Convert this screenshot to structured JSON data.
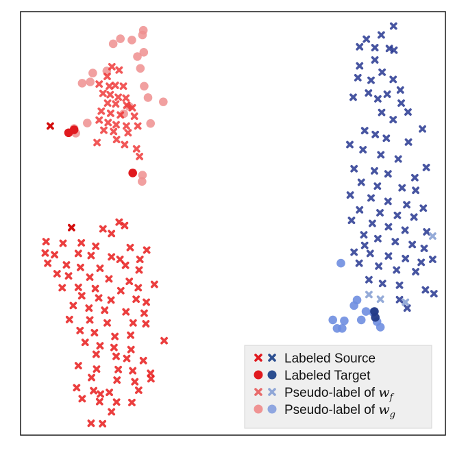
{
  "chart_data": {
    "type": "scatter",
    "title": "",
    "xlabel": "",
    "ylabel": "",
    "grid": false,
    "axes_ticks": false,
    "xlim": [
      0,
      100
    ],
    "ylim": [
      0,
      100
    ],
    "legend": {
      "placement": "bottom-right",
      "entries": [
        {
          "label": "Labeled Source",
          "math": "",
          "sub": "",
          "marker": "x",
          "colors": [
            "#e0191e",
            "#2c4e90"
          ],
          "opacity": 1.0
        },
        {
          "label": "Labeled Target",
          "math": "",
          "sub": "",
          "marker": "circle",
          "colors": [
            "#e0191e",
            "#2c4e90"
          ],
          "opacity": 1.0
        },
        {
          "label": "Pseudo-label of ",
          "math": "w",
          "sub": "f",
          "marker": "x",
          "colors": [
            "#e86a6a",
            "#8fa6d6"
          ],
          "opacity": 1.0
        },
        {
          "label": "Pseudo-label of ",
          "math": "w",
          "sub": "g",
          "marker": "circle",
          "colors": [
            "#ef9393",
            "#8fa6e0"
          ],
          "opacity": 1.0
        }
      ]
    },
    "series": [
      {
        "group": "red-labeled-source",
        "marker": "x",
        "color": "#d10000",
        "opacity": 0.95,
        "points": [
          [
            7,
            73
          ],
          [
            12,
            49
          ]
        ]
      },
      {
        "group": "red-labeled-target",
        "marker": "circle",
        "color": "#e0191e",
        "opacity": 1.0,
        "points": [
          [
            11.3,
            71.4
          ],
          [
            12.6,
            72.1
          ],
          [
            26.4,
            61.9
          ]
        ]
      },
      {
        "group": "red-pseudo-wf",
        "marker": "x",
        "color": "#ee2e2e",
        "opacity": 0.8,
        "points": [
          [
            21.5,
            87.0
          ],
          [
            23.2,
            86.2
          ],
          [
            20.4,
            84.7
          ],
          [
            18.5,
            82.9
          ],
          [
            20.9,
            82.4
          ],
          [
            22.3,
            82.6
          ],
          [
            24.2,
            82.4
          ],
          [
            19.4,
            80.7
          ],
          [
            21.1,
            80.4
          ],
          [
            23.0,
            79.8
          ],
          [
            24.8,
            79.6
          ],
          [
            20.5,
            78.4
          ],
          [
            22.4,
            78.2
          ],
          [
            25.0,
            77.9
          ],
          [
            26.3,
            77.3
          ],
          [
            19.0,
            76.5
          ],
          [
            21.2,
            76.0
          ],
          [
            23.5,
            75.6
          ],
          [
            26.8,
            75.3
          ],
          [
            18.5,
            74.4
          ],
          [
            20.6,
            73.8
          ],
          [
            22.5,
            73.3
          ],
          [
            24.9,
            73.0
          ],
          [
            27.6,
            73.0
          ],
          [
            19.6,
            72.0
          ],
          [
            21.9,
            71.7
          ],
          [
            25.3,
            71.4
          ],
          [
            22.6,
            69.8
          ],
          [
            18.0,
            69.1
          ],
          [
            24.5,
            68.6
          ],
          [
            27.3,
            67.6
          ],
          [
            28.0,
            65.8
          ]
        ]
      },
      {
        "group": "red-pseudo-wg-circles",
        "marker": "circle",
        "color": "#ef8f8f",
        "opacity": 0.85,
        "points": [
          [
            28.9,
            95.6
          ],
          [
            28.7,
            94.5
          ],
          [
            23.5,
            93.6
          ],
          [
            26.2,
            93.3
          ],
          [
            21.8,
            92.4
          ],
          [
            29.0,
            90.4
          ],
          [
            27.5,
            89.4
          ],
          [
            28.2,
            86.6
          ],
          [
            20.3,
            86.0
          ],
          [
            17.0,
            85.5
          ],
          [
            16.4,
            83.4
          ],
          [
            14.5,
            83.1
          ],
          [
            29.1,
            82.4
          ],
          [
            30.0,
            79.7
          ],
          [
            33.6,
            78.7
          ],
          [
            25.6,
            77.6
          ],
          [
            24.3,
            75.9
          ],
          [
            30.6,
            73.6
          ],
          [
            15.7,
            73.7
          ],
          [
            13.0,
            71.3
          ],
          [
            12.6,
            72.4
          ],
          [
            28.7,
            61.4
          ],
          [
            28.6,
            59.9
          ]
        ]
      },
      {
        "group": "red-source-cluster",
        "marker": "x",
        "color": "#e81c1c",
        "opacity": 0.85,
        "points": [
          [
            23.2,
            50.3
          ],
          [
            24.5,
            49.5
          ],
          [
            19.4,
            48.7
          ],
          [
            21.4,
            47.6
          ],
          [
            6.0,
            45.7
          ],
          [
            10.0,
            45.3
          ],
          [
            14.3,
            45.4
          ],
          [
            17.7,
            44.6
          ],
          [
            25.8,
            44.3
          ],
          [
            29.7,
            43.7
          ],
          [
            5.8,
            43.0
          ],
          [
            8.0,
            42.6
          ],
          [
            13.6,
            42.9
          ],
          [
            16.6,
            42.4
          ],
          [
            21.4,
            42.1
          ],
          [
            23.4,
            41.5
          ],
          [
            28.1,
            41.5
          ],
          [
            6.4,
            40.6
          ],
          [
            10.8,
            40.2
          ],
          [
            14.1,
            39.6
          ],
          [
            18.7,
            39.4
          ],
          [
            24.7,
            40.1
          ],
          [
            27.9,
            39.0
          ],
          [
            8.6,
            38.1
          ],
          [
            11.3,
            37.6
          ],
          [
            16.3,
            37.3
          ],
          [
            20.8,
            36.9
          ],
          [
            25.6,
            36.3
          ],
          [
            31.5,
            35.6
          ],
          [
            9.8,
            34.8
          ],
          [
            13.6,
            34.9
          ],
          [
            17.6,
            34.6
          ],
          [
            23.6,
            34.1
          ],
          [
            27.7,
            34.8
          ],
          [
            14.4,
            32.9
          ],
          [
            18.4,
            32.4
          ],
          [
            21.3,
            31.9
          ],
          [
            27.2,
            32.1
          ],
          [
            29.6,
            31.4
          ],
          [
            12.4,
            30.6
          ],
          [
            16.1,
            30.0
          ],
          [
            19.8,
            29.5
          ],
          [
            24.8,
            29.1
          ],
          [
            29.1,
            28.8
          ],
          [
            11.5,
            27.3
          ],
          [
            16.3,
            27.2
          ],
          [
            20.4,
            26.5
          ],
          [
            26.5,
            26.5
          ],
          [
            29.5,
            26.3
          ],
          [
            14.0,
            24.7
          ],
          [
            17.4,
            24.2
          ],
          [
            22.2,
            23.3
          ],
          [
            25.9,
            23.6
          ],
          [
            33.8,
            22.3
          ],
          [
            15.2,
            21.9
          ],
          [
            18.7,
            21.1
          ],
          [
            22.0,
            20.7
          ],
          [
            26.0,
            20.2
          ],
          [
            17.8,
            19.1
          ],
          [
            22.5,
            18.6
          ],
          [
            25.0,
            18.1
          ],
          [
            28.9,
            17.6
          ],
          [
            13.6,
            16.4
          ],
          [
            17.9,
            15.6
          ],
          [
            23.0,
            15.5
          ],
          [
            26.4,
            15.2
          ],
          [
            30.6,
            14.6
          ],
          [
            16.7,
            13.6
          ],
          [
            22.7,
            13.0
          ],
          [
            26.9,
            12.6
          ],
          [
            30.7,
            13.3
          ],
          [
            13.2,
            11.2
          ],
          [
            17.2,
            10.5
          ],
          [
            20.9,
            10.1
          ],
          [
            27.8,
            10.6
          ],
          [
            18.8,
            9.7
          ],
          [
            14.5,
            8.6
          ],
          [
            18.6,
            7.9
          ],
          [
            22.6,
            7.8
          ],
          [
            26.2,
            7.7
          ],
          [
            21.4,
            5.5
          ],
          [
            16.6,
            2.8
          ],
          [
            19.3,
            2.7
          ]
        ]
      },
      {
        "group": "blue-pseudo-wg",
        "marker": "circle",
        "color": "#6f8ee0",
        "opacity": 0.9,
        "points": [
          [
            75.4,
            40.6
          ],
          [
            79.2,
            31.9
          ],
          [
            78.5,
            30.6
          ],
          [
            81.3,
            29.2
          ],
          [
            83.0,
            29.0
          ],
          [
            73.5,
            27.2
          ],
          [
            76.2,
            27.0
          ],
          [
            80.2,
            27.2
          ],
          [
            83.9,
            26.8
          ],
          [
            74.5,
            25.2
          ],
          [
            75.7,
            25.2
          ],
          [
            84.7,
            25.5
          ]
        ]
      },
      {
        "group": "blue-labeled-target",
        "marker": "circle",
        "color": "#233a86",
        "opacity": 0.95,
        "points": [
          [
            83.3,
            29.2
          ],
          [
            83.5,
            27.8
          ]
        ]
      },
      {
        "group": "blue-pseudo-wf",
        "marker": "x",
        "color": "#8fa6d6",
        "opacity": 0.95,
        "points": [
          [
            82.0,
            33.2
          ],
          [
            84.7,
            32.1
          ],
          [
            90.6,
            31.4
          ],
          [
            97.0,
            47.0
          ]
        ]
      },
      {
        "group": "blue-source-cluster",
        "marker": "x",
        "color": "#1f2f8c",
        "opacity": 0.82,
        "points": [
          [
            87.8,
            96.6
          ],
          [
            84.9,
            94.5
          ],
          [
            81.4,
            93.5
          ],
          [
            79.8,
            91.7
          ],
          [
            83.4,
            91.5
          ],
          [
            86.8,
            91.3
          ],
          [
            87.9,
            90.9
          ],
          [
            83.4,
            88.6
          ],
          [
            79.8,
            87.2
          ],
          [
            85.1,
            85.7
          ],
          [
            79.4,
            84.4
          ],
          [
            82.5,
            83.8
          ],
          [
            87.7,
            84.0
          ],
          [
            89.4,
            81.5
          ],
          [
            81.9,
            80.8
          ],
          [
            86.3,
            80.5
          ],
          [
            78.3,
            79.8
          ],
          [
            84.1,
            79.4
          ],
          [
            89.6,
            78.4
          ],
          [
            91.2,
            76.3
          ],
          [
            85.0,
            76.2
          ],
          [
            87.7,
            74.5
          ],
          [
            94.6,
            72.3
          ],
          [
            81.0,
            71.9
          ],
          [
            83.5,
            71.0
          ],
          [
            86.1,
            70.1
          ],
          [
            91.3,
            69.2
          ],
          [
            77.5,
            68.6
          ],
          [
            80.6,
            67.4
          ],
          [
            84.8,
            66.2
          ],
          [
            88.9,
            65.2
          ],
          [
            95.5,
            63.2
          ],
          [
            78.5,
            62.9
          ],
          [
            83.3,
            62.4
          ],
          [
            86.5,
            61.7
          ],
          [
            92.8,
            60.8
          ],
          [
            80.2,
            59.7
          ],
          [
            84.0,
            58.8
          ],
          [
            89.8,
            58.4
          ],
          [
            93.0,
            57.8
          ],
          [
            77.6,
            56.7
          ],
          [
            82.5,
            56.0
          ],
          [
            86.5,
            55.2
          ],
          [
            90.9,
            54.4
          ],
          [
            94.8,
            53.6
          ],
          [
            79.8,
            53.2
          ],
          [
            84.6,
            52.5
          ],
          [
            88.7,
            51.9
          ],
          [
            92.6,
            51.5
          ],
          [
            77.9,
            50.7
          ],
          [
            82.8,
            50.0
          ],
          [
            86.6,
            49.2
          ],
          [
            90.5,
            48.4
          ],
          [
            95.6,
            48.0
          ],
          [
            80.8,
            47.3
          ],
          [
            84.1,
            46.4
          ],
          [
            88.2,
            45.7
          ],
          [
            92.2,
            45.0
          ],
          [
            95.0,
            44.1
          ],
          [
            78.5,
            43.2
          ],
          [
            82.3,
            42.9
          ],
          [
            86.6,
            42.3
          ],
          [
            90.6,
            41.7
          ],
          [
            94.3,
            40.8
          ],
          [
            97.0,
            41.5
          ],
          [
            79.7,
            40.6
          ],
          [
            84.3,
            39.9
          ],
          [
            88.5,
            39.0
          ],
          [
            93.0,
            38.6
          ],
          [
            82.0,
            36.7
          ],
          [
            85.2,
            35.8
          ],
          [
            89.2,
            35.4
          ],
          [
            95.3,
            34.3
          ],
          [
            97.3,
            33.4
          ],
          [
            91.0,
            30.0
          ],
          [
            89.2,
            32.0
          ],
          [
            81.0,
            44.8
          ]
        ]
      }
    ]
  }
}
